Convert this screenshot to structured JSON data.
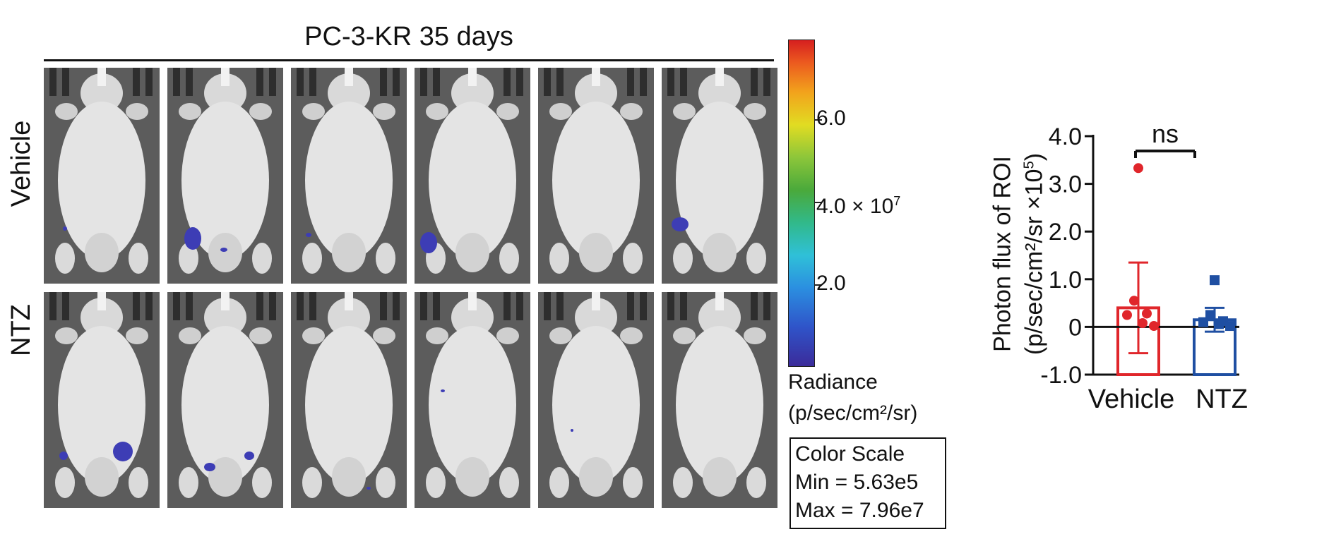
{
  "figure": {
    "title": "PC-3-KR 35 days",
    "rows": [
      {
        "label": "Vehicle"
      },
      {
        "label": "NTZ"
      }
    ],
    "columns": 6,
    "colorbar": {
      "labels": [
        "6.0",
        "4.0 × 10",
        "2.0"
      ],
      "exponent": "7",
      "radiance_title": "Radiance",
      "radiance_unit": "(p/sec/cm²/sr)",
      "color_scale": {
        "heading": "Color Scale",
        "min": "Min = 5.63e5",
        "max": "Max = 7.96e7"
      },
      "colors": [
        "#3b2b9a",
        "#2f54c9",
        "#2b8fe0",
        "#2fc0d8",
        "#31b98a",
        "#4aa93b",
        "#8cc63a",
        "#e1dc22",
        "#f2a31c",
        "#ec5b1f",
        "#d61f1f"
      ]
    }
  },
  "chart_data": {
    "type": "bar",
    "categories": [
      "Vehicle",
      "NTZ"
    ],
    "ylabel_line1": "Photon flux of ROI",
    "ylabel_line2": "(p/sec/cm²/sr ×10",
    "ylabel_exp": "5",
    "ylabel_close": ")",
    "ylim": [
      -1.0,
      4.0
    ],
    "yticks": [
      {
        "value": 4.0,
        "label": "4.0"
      },
      {
        "value": 3.0,
        "label": "3.0"
      },
      {
        "value": 2.0,
        "label": "2.0"
      },
      {
        "value": 1.0,
        "label": "1.0"
      },
      {
        "value": 0,
        "label": "0"
      },
      {
        "value": -1.0,
        "label": "-1.0"
      }
    ],
    "series": [
      {
        "values": [
          0.4,
          0.15
        ],
        "errors": [
          0.95,
          0.25
        ]
      }
    ],
    "points": [
      [
        3.33,
        0.55,
        0.28,
        0.25,
        0.08,
        0.02
      ],
      [
        0.98,
        0.25,
        0.12,
        0.1,
        0.06,
        0.02
      ]
    ],
    "colors": [
      "#e0262b",
      "#1f4fa2"
    ],
    "significance": {
      "label": "ns",
      "between": [
        0,
        1
      ]
    }
  }
}
